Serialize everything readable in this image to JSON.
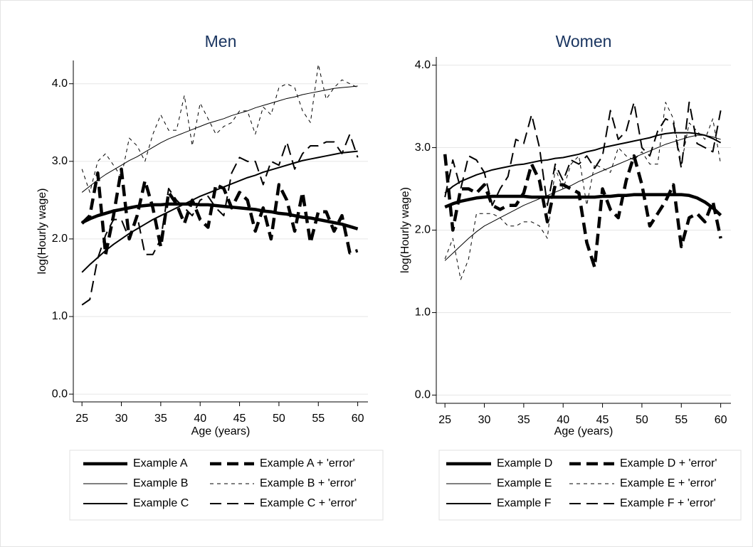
{
  "chart_data": [
    {
      "type": "line",
      "title": "Men",
      "xlabel": "Age (years)",
      "ylabel": "log(Hourly wage)",
      "x": [
        25,
        26,
        27,
        28,
        29,
        30,
        31,
        32,
        33,
        34,
        35,
        36,
        37,
        38,
        39,
        40,
        41,
        42,
        43,
        44,
        45,
        46,
        47,
        48,
        49,
        50,
        51,
        52,
        53,
        54,
        55,
        56,
        57,
        58,
        59,
        60
      ],
      "xlim": [
        23.9,
        61.3
      ],
      "xticks": [
        25,
        30,
        35,
        40,
        45,
        50,
        55,
        60
      ],
      "ylim": [
        -0.1,
        4.3
      ],
      "yticks": [
        {
          "value": 0,
          "label": "0.0"
        },
        {
          "value": 1,
          "label": "1.0"
        },
        {
          "value": 2,
          "label": "2.0"
        },
        {
          "value": 3,
          "label": "3.0"
        },
        {
          "value": 4,
          "label": "4.0"
        }
      ],
      "grid": true,
      "legend": "bottom",
      "series": [
        {
          "name": "Example A",
          "color": "#000000",
          "style": "thick",
          "dash": "solid",
          "values": [
            2.21,
            2.26,
            2.3,
            2.33,
            2.36,
            2.38,
            2.4,
            2.42,
            2.43,
            2.44,
            2.44,
            2.45,
            2.45,
            2.45,
            2.45,
            2.44,
            2.44,
            2.43,
            2.42,
            2.41,
            2.4,
            2.39,
            2.38,
            2.36,
            2.35,
            2.33,
            2.32,
            2.3,
            2.28,
            2.27,
            2.25,
            2.23,
            2.21,
            2.19,
            2.16,
            2.13
          ]
        },
        {
          "name": "Example A + 'error'",
          "color": "#000000",
          "style": "thick",
          "dash": "dashed",
          "values": [
            2.2,
            2.3,
            2.85,
            1.8,
            2.3,
            2.9,
            2.0,
            2.3,
            2.75,
            2.4,
            1.9,
            2.6,
            2.45,
            2.2,
            2.5,
            2.25,
            2.15,
            2.7,
            2.65,
            2.4,
            2.6,
            2.5,
            2.1,
            2.4,
            2.0,
            2.7,
            2.5,
            2.1,
            2.6,
            1.95,
            2.35,
            2.35,
            2.1,
            2.3,
            1.82,
            1.85
          ]
        },
        {
          "name": "Example B",
          "color": "#000000",
          "style": "thin",
          "dash": "solid",
          "values": [
            2.6,
            2.68,
            2.76,
            2.83,
            2.89,
            2.95,
            3.01,
            3.06,
            3.12,
            3.18,
            3.24,
            3.29,
            3.33,
            3.37,
            3.41,
            3.45,
            3.49,
            3.52,
            3.55,
            3.59,
            3.62,
            3.65,
            3.69,
            3.72,
            3.75,
            3.78,
            3.81,
            3.83,
            3.86,
            3.88,
            3.9,
            3.92,
            3.94,
            3.95,
            3.96,
            3.97
          ]
        },
        {
          "name": "Example B + 'error'",
          "color": "#000000",
          "style": "thin",
          "dash": "short-dashed",
          "values": [
            2.9,
            2.6,
            3.0,
            3.1,
            2.95,
            2.8,
            3.3,
            3.2,
            3.0,
            3.35,
            3.6,
            3.4,
            3.4,
            3.85,
            3.2,
            3.75,
            3.55,
            3.35,
            3.45,
            3.5,
            3.65,
            3.65,
            3.35,
            3.7,
            3.6,
            3.95,
            4.0,
            3.95,
            3.65,
            3.5,
            4.25,
            3.8,
            3.95,
            4.05,
            4.0,
            3.95
          ]
        },
        {
          "name": "Example C",
          "color": "#000000",
          "style": "medium",
          "dash": "solid",
          "values": [
            1.57,
            1.67,
            1.76,
            1.85,
            1.93,
            2.0,
            2.07,
            2.13,
            2.19,
            2.25,
            2.3,
            2.35,
            2.4,
            2.45,
            2.5,
            2.55,
            2.59,
            2.63,
            2.67,
            2.71,
            2.75,
            2.79,
            2.82,
            2.86,
            2.89,
            2.92,
            2.95,
            2.98,
            3.01,
            3.03,
            3.05,
            3.07,
            3.09,
            3.11,
            3.12,
            3.13
          ]
        },
        {
          "name": "Example C + 'error'",
          "color": "#000000",
          "style": "medium",
          "dash": "dashed",
          "values": [
            1.15,
            1.22,
            1.75,
            2.05,
            2.25,
            2.25,
            2.0,
            2.3,
            1.8,
            1.8,
            2.0,
            2.65,
            2.5,
            2.4,
            2.3,
            2.5,
            2.55,
            2.4,
            2.3,
            2.85,
            3.05,
            3.0,
            3.0,
            2.7,
            3.0,
            2.95,
            3.25,
            2.9,
            3.1,
            3.2,
            3.2,
            3.25,
            3.25,
            3.1,
            3.35,
            3.05
          ]
        }
      ]
    },
    {
      "type": "line",
      "title": "Women",
      "xlabel": "Age (years)",
      "ylabel": "log(Hourly wage)",
      "x": [
        25,
        26,
        27,
        28,
        29,
        30,
        31,
        32,
        33,
        34,
        35,
        36,
        37,
        38,
        39,
        40,
        41,
        42,
        43,
        44,
        45,
        46,
        47,
        48,
        49,
        50,
        51,
        52,
        53,
        54,
        55,
        56,
        57,
        58,
        59,
        60
      ],
      "xlim": [
        23.9,
        61.3
      ],
      "xticks": [
        25,
        30,
        35,
        40,
        45,
        50,
        55,
        60
      ],
      "ylim": [
        -0.1,
        4.1
      ],
      "yticks": [
        {
          "value": 0,
          "label": "0.0"
        },
        {
          "value": 1,
          "label": "1.0"
        },
        {
          "value": 2,
          "label": "2.0"
        },
        {
          "value": 3,
          "label": "3.0"
        },
        {
          "value": 4,
          "label": "4.0"
        }
      ],
      "grid": true,
      "legend": "bottom",
      "series": [
        {
          "name": "Example D",
          "color": "#000000",
          "style": "thick",
          "dash": "solid",
          "values": [
            2.28,
            2.32,
            2.35,
            2.37,
            2.39,
            2.4,
            2.41,
            2.41,
            2.41,
            2.41,
            2.41,
            2.4,
            2.4,
            2.4,
            2.4,
            2.4,
            2.4,
            2.4,
            2.4,
            2.4,
            2.41,
            2.41,
            2.42,
            2.42,
            2.43,
            2.43,
            2.43,
            2.43,
            2.43,
            2.43,
            2.43,
            2.42,
            2.39,
            2.34,
            2.27,
            2.18
          ]
        },
        {
          "name": "Example D + 'error'",
          "color": "#000000",
          "style": "thick",
          "dash": "dashed",
          "values": [
            2.92,
            2.0,
            2.5,
            2.5,
            2.45,
            2.55,
            2.3,
            2.25,
            2.3,
            2.3,
            2.45,
            2.8,
            2.6,
            2.1,
            2.55,
            2.55,
            2.5,
            2.45,
            1.85,
            1.55,
            2.5,
            2.25,
            2.15,
            2.6,
            2.9,
            2.55,
            2.05,
            2.2,
            2.35,
            2.55,
            1.8,
            2.15,
            2.2,
            2.1,
            2.35,
            1.9
          ]
        },
        {
          "name": "Example E",
          "color": "#000000",
          "style": "thin",
          "dash": "solid",
          "values": [
            1.63,
            1.72,
            1.81,
            1.9,
            1.98,
            2.05,
            2.1,
            2.15,
            2.2,
            2.25,
            2.3,
            2.34,
            2.38,
            2.42,
            2.46,
            2.5,
            2.54,
            2.59,
            2.63,
            2.68,
            2.72,
            2.76,
            2.8,
            2.84,
            2.88,
            2.92,
            2.96,
            3.0,
            3.04,
            3.07,
            3.1,
            3.13,
            3.15,
            3.15,
            3.13,
            3.1
          ]
        },
        {
          "name": "Example E + 'error'",
          "color": "#000000",
          "style": "thin",
          "dash": "short-dashed",
          "values": [
            1.65,
            1.9,
            1.4,
            1.65,
            2.2,
            2.2,
            2.2,
            2.15,
            2.05,
            2.05,
            2.1,
            2.1,
            2.05,
            1.9,
            2.75,
            2.5,
            2.8,
            2.9,
            2.3,
            2.8,
            2.75,
            2.7,
            3.0,
            2.9,
            2.85,
            2.95,
            2.8,
            2.8,
            3.55,
            3.35,
            2.8,
            3.3,
            3.2,
            3.1,
            3.35,
            2.8
          ]
        },
        {
          "name": "Example F",
          "color": "#000000",
          "style": "medium",
          "dash": "solid",
          "values": [
            2.45,
            2.53,
            2.59,
            2.63,
            2.67,
            2.7,
            2.73,
            2.75,
            2.77,
            2.79,
            2.8,
            2.82,
            2.84,
            2.85,
            2.87,
            2.88,
            2.9,
            2.92,
            2.95,
            2.97,
            3.0,
            3.02,
            3.04,
            3.06,
            3.08,
            3.1,
            3.12,
            3.15,
            3.17,
            3.18,
            3.18,
            3.18,
            3.17,
            3.15,
            3.11,
            3.06
          ]
        },
        {
          "name": "Example F + 'error'",
          "color": "#000000",
          "style": "medium",
          "dash": "dashed",
          "values": [
            2.4,
            2.85,
            2.5,
            2.9,
            2.85,
            2.7,
            2.3,
            2.5,
            2.65,
            3.1,
            3.05,
            3.4,
            3.0,
            2.3,
            2.8,
            2.6,
            2.85,
            2.8,
            2.9,
            2.75,
            2.9,
            3.45,
            3.1,
            3.2,
            3.55,
            3.0,
            2.9,
            3.2,
            3.35,
            3.3,
            2.75,
            3.55,
            3.05,
            3.0,
            2.95,
            3.45
          ]
        }
      ]
    }
  ]
}
